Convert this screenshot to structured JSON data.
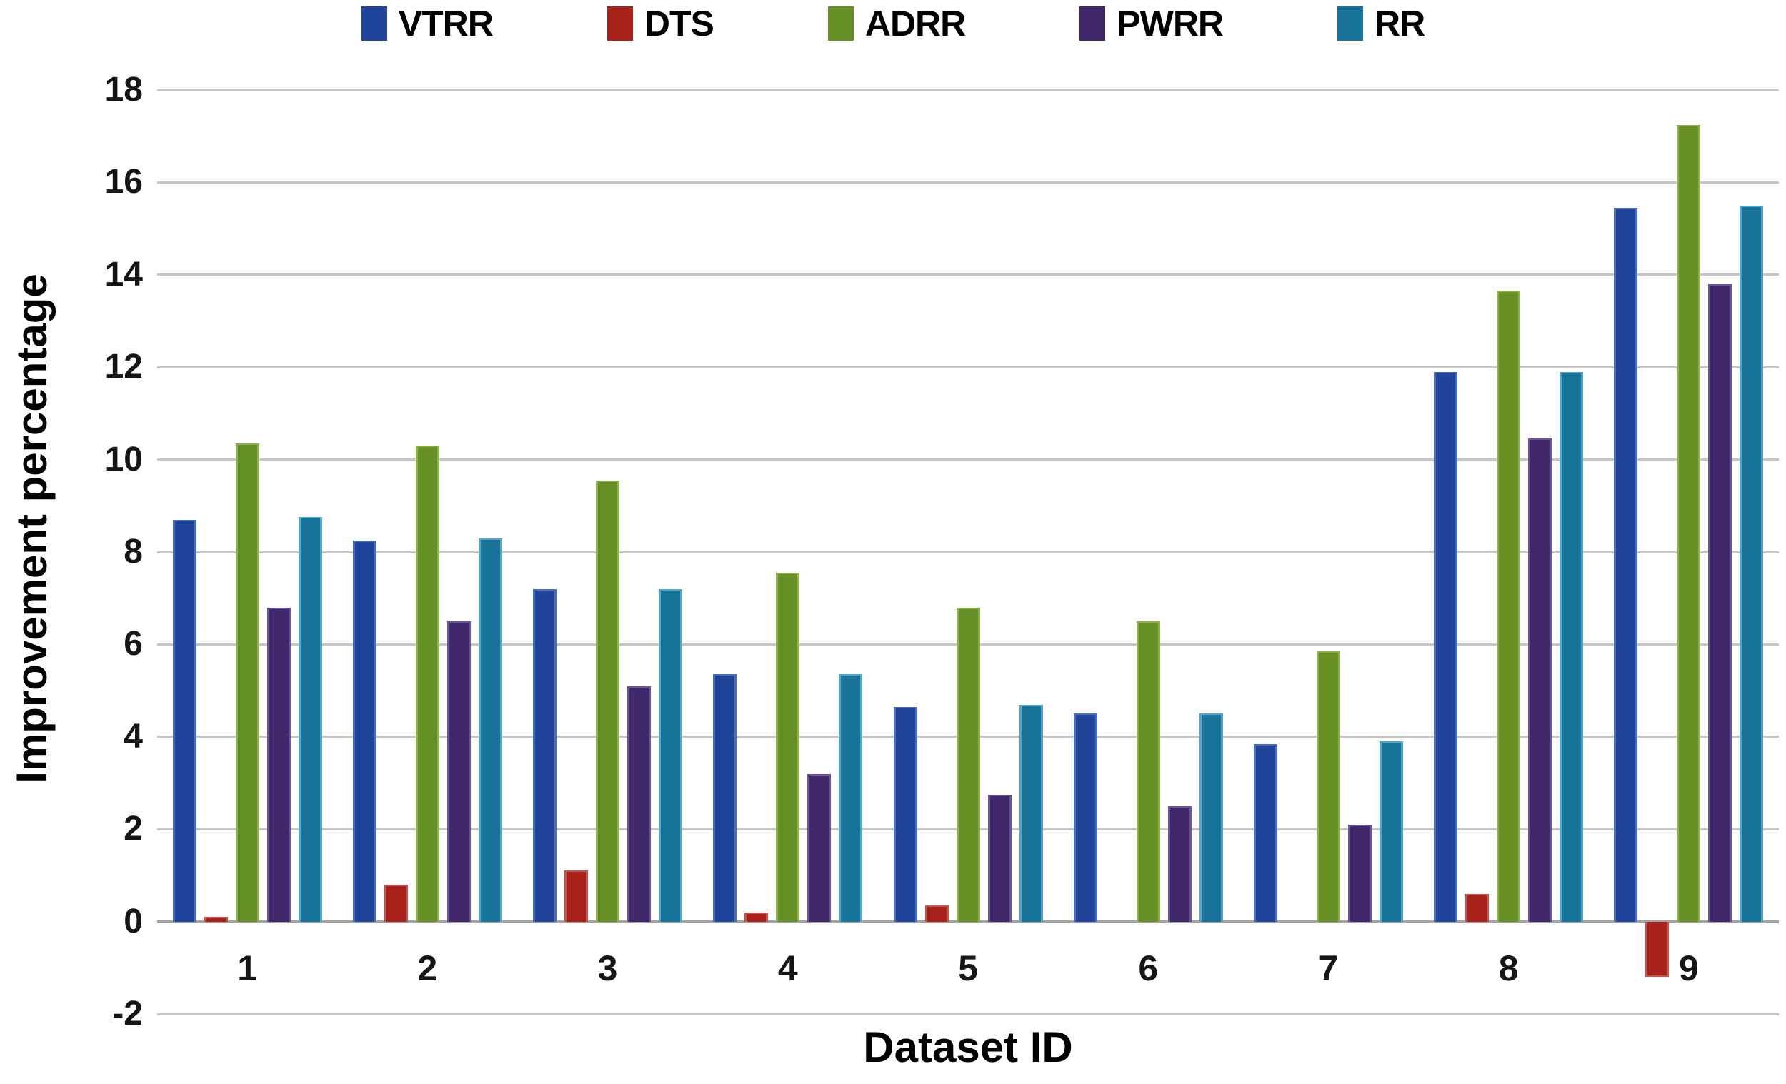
{
  "legend": {
    "items": [
      {
        "label": "VTRR",
        "color": "#1F4499"
      },
      {
        "label": "DTS",
        "color": "#A8211B"
      },
      {
        "label": "ADRR",
        "color": "#668F24"
      },
      {
        "label": "PWRR",
        "color": "#41286B"
      },
      {
        "label": "RR",
        "color": "#17739A"
      }
    ]
  },
  "y_axis": {
    "title": "Improvement percentage",
    "min": -2,
    "max": 18,
    "step": 2,
    "tick_labels": [
      "18",
      "16",
      "14",
      "12",
      "10",
      "8",
      "6",
      "4",
      "2",
      "0",
      "-2"
    ]
  },
  "x_axis": {
    "title": "Dataset ID",
    "tick_labels": [
      "1",
      "2",
      "3",
      "4",
      "5",
      "6",
      "7",
      "8",
      "9"
    ]
  },
  "chart_data": {
    "type": "bar",
    "title": "",
    "xlabel": "Dataset ID",
    "ylabel": "Improvement percentage",
    "categories": [
      "1",
      "2",
      "3",
      "4",
      "5",
      "6",
      "7",
      "8",
      "9"
    ],
    "series": [
      {
        "name": "VTRR",
        "color": "#1F4499",
        "edge": "#4A6FB8",
        "values": [
          8.7,
          8.25,
          7.2,
          5.35,
          4.65,
          4.5,
          3.85,
          11.9,
          15.45
        ]
      },
      {
        "name": "DTS",
        "color": "#A8211B",
        "edge": "#C4554E",
        "values": [
          0.1,
          0.8,
          1.1,
          0.2,
          0.35,
          0,
          0,
          0.6,
          -1.2
        ]
      },
      {
        "name": "ADRR",
        "color": "#668F24",
        "edge": "#8FB052",
        "values": [
          10.35,
          10.3,
          9.55,
          7.55,
          6.8,
          6.5,
          5.85,
          13.65,
          17.25
        ]
      },
      {
        "name": "PWRR",
        "color": "#41286B",
        "edge": "#6B539B",
        "values": [
          6.8,
          6.5,
          5.1,
          3.2,
          2.75,
          2.5,
          2.1,
          10.45,
          13.8
        ]
      },
      {
        "name": "RR",
        "color": "#17739A",
        "edge": "#55A5C6",
        "values": [
          8.75,
          8.3,
          7.2,
          5.35,
          4.7,
          4.5,
          3.9,
          11.9,
          15.5
        ]
      }
    ],
    "ylim": [
      -2,
      18
    ],
    "grid": true,
    "legend_position": "top"
  },
  "colors": {
    "background": "#FFFFFF",
    "gridline": "#C6C6C6",
    "zero_axis": "#A3A3A3",
    "text": "#161616"
  }
}
